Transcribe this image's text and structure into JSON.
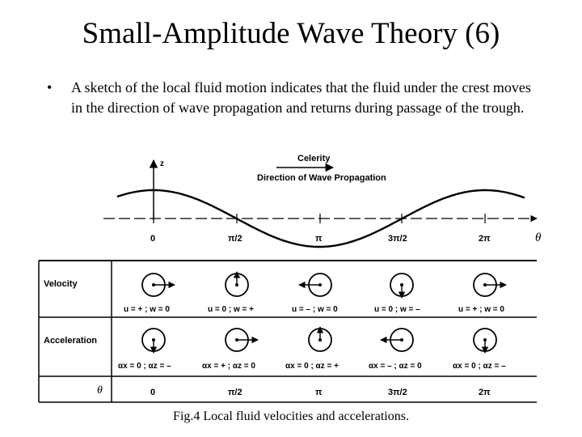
{
  "title": "Small-Amplitude Wave Theory (6)",
  "bullet": {
    "symbol": "•",
    "text": "A sketch of the local fluid motion indicates that the fluid under the crest moves in the direction of wave propagation and returns during passage of the trough."
  },
  "figure": {
    "celerity_label": "Celerity",
    "direction_label": "Direction of Wave Propagation",
    "z_axis_label": "z",
    "theta_axis_label": "θ",
    "phase_ticks": [
      "0",
      "π/2",
      "π",
      "3π/2",
      "2π"
    ],
    "row_labels": {
      "velocity": "Velocity",
      "acceleration": "Acceleration",
      "theta": "θ"
    },
    "velocity_labels": [
      "u = + ; w = 0",
      "u = 0 ; w = +",
      "u = – ; w = 0",
      "u = 0 ; w = –",
      "u = + ; w = 0"
    ],
    "acceleration_labels": [
      "αx = 0 ; αz = –",
      "αx = + ; αz = 0",
      "αx = 0 ; αz = +",
      "αx = – ; αz = 0",
      "αx = 0 ; αz = –"
    ],
    "theta_values": [
      "0",
      "π/2",
      "π",
      "3π/2",
      "2π"
    ],
    "velocity_directions": [
      "right",
      "up",
      "left",
      "down",
      "right"
    ],
    "acceleration_directions": [
      "down",
      "right",
      "up",
      "left",
      "down"
    ]
  },
  "caption": "Fig.4 Local fluid velocities and accelerations."
}
